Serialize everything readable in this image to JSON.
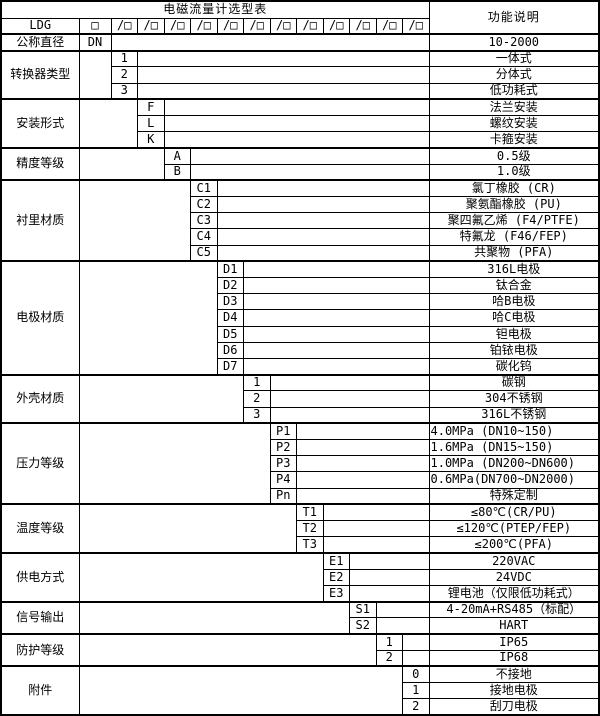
{
  "colors": {
    "border": "#000000",
    "text": "#000000",
    "background": "#ffffff"
  },
  "page": {
    "title": "电磁流量计选型表",
    "function_header": "功能说明",
    "model_code_row": {
      "label": "LDG",
      "base_slot": "□",
      "slot": "/□",
      "slot_count": 12
    },
    "sections": [
      {
        "label": "公称直径",
        "options": [
          {
            "code": "DN",
            "desc": "10-2000"
          }
        ]
      },
      {
        "label": "转换器类型",
        "options": [
          {
            "code": "1",
            "desc": "一体式"
          },
          {
            "code": "2",
            "desc": "分体式"
          },
          {
            "code": "3",
            "desc": "低功耗式"
          }
        ]
      },
      {
        "label": "安装形式",
        "options": [
          {
            "code": "F",
            "desc": "法兰安装"
          },
          {
            "code": "L",
            "desc": "螺纹安装"
          },
          {
            "code": "K",
            "desc": "卡箍安装"
          }
        ]
      },
      {
        "label": "精度等级",
        "options": [
          {
            "code": "A",
            "desc": "0.5级"
          },
          {
            "code": "B",
            "desc": "1.0级"
          }
        ]
      },
      {
        "label": "衬里材质",
        "options": [
          {
            "code": "C1",
            "desc": "氯丁橡胶 (CR)"
          },
          {
            "code": "C2",
            "desc": "聚氨酯橡胶 (PU)"
          },
          {
            "code": "C3",
            "desc": "聚四氟乙烯 (F4/PTFE)"
          },
          {
            "code": "C4",
            "desc": "特氟龙 (F46/FEP)"
          },
          {
            "code": "C5",
            "desc": "共聚物 (PFA)"
          }
        ]
      },
      {
        "label": "电极材质",
        "options": [
          {
            "code": "D1",
            "desc": "316L电极"
          },
          {
            "code": "D2",
            "desc": "钛合金"
          },
          {
            "code": "D3",
            "desc": "哈B电极"
          },
          {
            "code": "D4",
            "desc": "哈C电极"
          },
          {
            "code": "D5",
            "desc": "钽电极"
          },
          {
            "code": "D6",
            "desc": "铂铱电极"
          },
          {
            "code": "D7",
            "desc": "碳化钨"
          }
        ]
      },
      {
        "label": "外壳材质",
        "options": [
          {
            "code": "1",
            "desc": "碳钢"
          },
          {
            "code": "2",
            "desc": "304不锈钢"
          },
          {
            "code": "3",
            "desc": "316L不锈钢"
          }
        ]
      },
      {
        "label": "压力等级",
        "options": [
          {
            "code": "P1",
            "desc": "4.0MPa (DN10~150)",
            "align": "left"
          },
          {
            "code": "P2",
            "desc": "1.6MPa (DN15~150)",
            "align": "left"
          },
          {
            "code": "P3",
            "desc": "1.0MPa (DN200~DN600)",
            "align": "left"
          },
          {
            "code": "P4",
            "desc": "0.6MPa(DN700~DN2000)",
            "align": "left"
          },
          {
            "code": "Pn",
            "desc": "特殊定制"
          }
        ]
      },
      {
        "label": "温度等级",
        "options": [
          {
            "code": "T1",
            "desc": "≤80℃(CR/PU)"
          },
          {
            "code": "T2",
            "desc": "≤120℃(PTEP/FEP)"
          },
          {
            "code": "T3",
            "desc": "≤200℃(PFA)"
          }
        ]
      },
      {
        "label": "供电方式",
        "options": [
          {
            "code": "E1",
            "desc": "220VAC"
          },
          {
            "code": "E2",
            "desc": "24VDC"
          },
          {
            "code": "E3",
            "desc": "锂电池（仅限低功耗式）"
          }
        ]
      },
      {
        "label": "信号输出",
        "options": [
          {
            "code": "S1",
            "desc": "4-20mA+RS485（标配）"
          },
          {
            "code": "S2",
            "desc": "HART"
          }
        ]
      },
      {
        "label": "防护等级",
        "options": [
          {
            "code": "1",
            "desc": "IP65"
          },
          {
            "code": "2",
            "desc": "IP68"
          }
        ]
      },
      {
        "label": "附件",
        "options": [
          {
            "code": "0",
            "desc": "不接地"
          },
          {
            "code": "1",
            "desc": "接地电极"
          },
          {
            "code": "2",
            "desc": "刮刀电极"
          }
        ]
      }
    ]
  }
}
